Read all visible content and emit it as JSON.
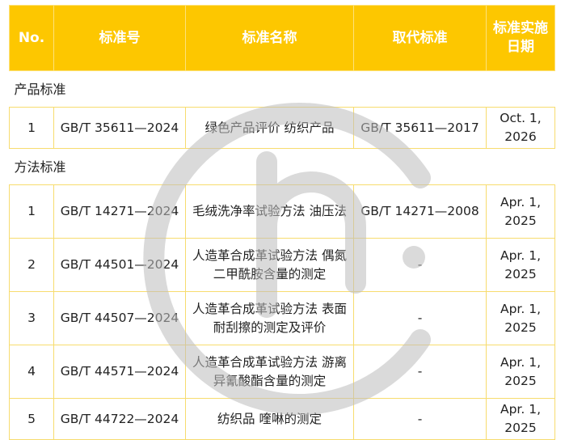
{
  "headers": [
    "No.",
    "标准号",
    "标准名称",
    "取代标准",
    "标准实施日期"
  ],
  "sections": [
    {
      "title": "产品标准",
      "rows": [
        {
          "no": "1",
          "code": "GB/T 35611—2024",
          "name": "绿色产品评价 纺织产品",
          "replaces": "GB/T 35611—2017",
          "date": "Oct. 1, 2026"
        }
      ]
    },
    {
      "title": "方法标准",
      "rows": [
        {
          "no": "1",
          "code": "GB/T 14271—2024",
          "name": "毛绒洗净率试验方法 油压法",
          "replaces": "GB/T 14271—2008",
          "date": "Apr. 1, 2025"
        },
        {
          "no": "2",
          "code": "GB/T 44501—2024",
          "name": "人造革合成革试验方法 偶氮二甲酰胺含量的测定",
          "replaces": "-",
          "date": "Apr. 1, 2025"
        },
        {
          "no": "3",
          "code": "GB/T 44507—2024",
          "name": "人造革合成革试验方法 表面耐刮擦的测定及评价",
          "replaces": "-",
          "date": "Apr. 1, 2025"
        },
        {
          "no": "4",
          "code": "GB/T 44571—2024",
          "name": "人造革合成革试验方法 游离异氰酸酯含量的测定",
          "replaces": "-",
          "date": "Apr. 1, 2025"
        },
        {
          "no": "5",
          "code": "GB/T 44722—2024",
          "name": "纺织品 喹啉的测定",
          "replaces": "-",
          "date": "Apr. 1, 2025"
        }
      ]
    }
  ],
  "colors": {
    "header_bg": "#fdc700",
    "border": "#f7dc6e",
    "watermark": "#bdbdbd"
  },
  "watermark_icon": "circle-logo-watermark"
}
